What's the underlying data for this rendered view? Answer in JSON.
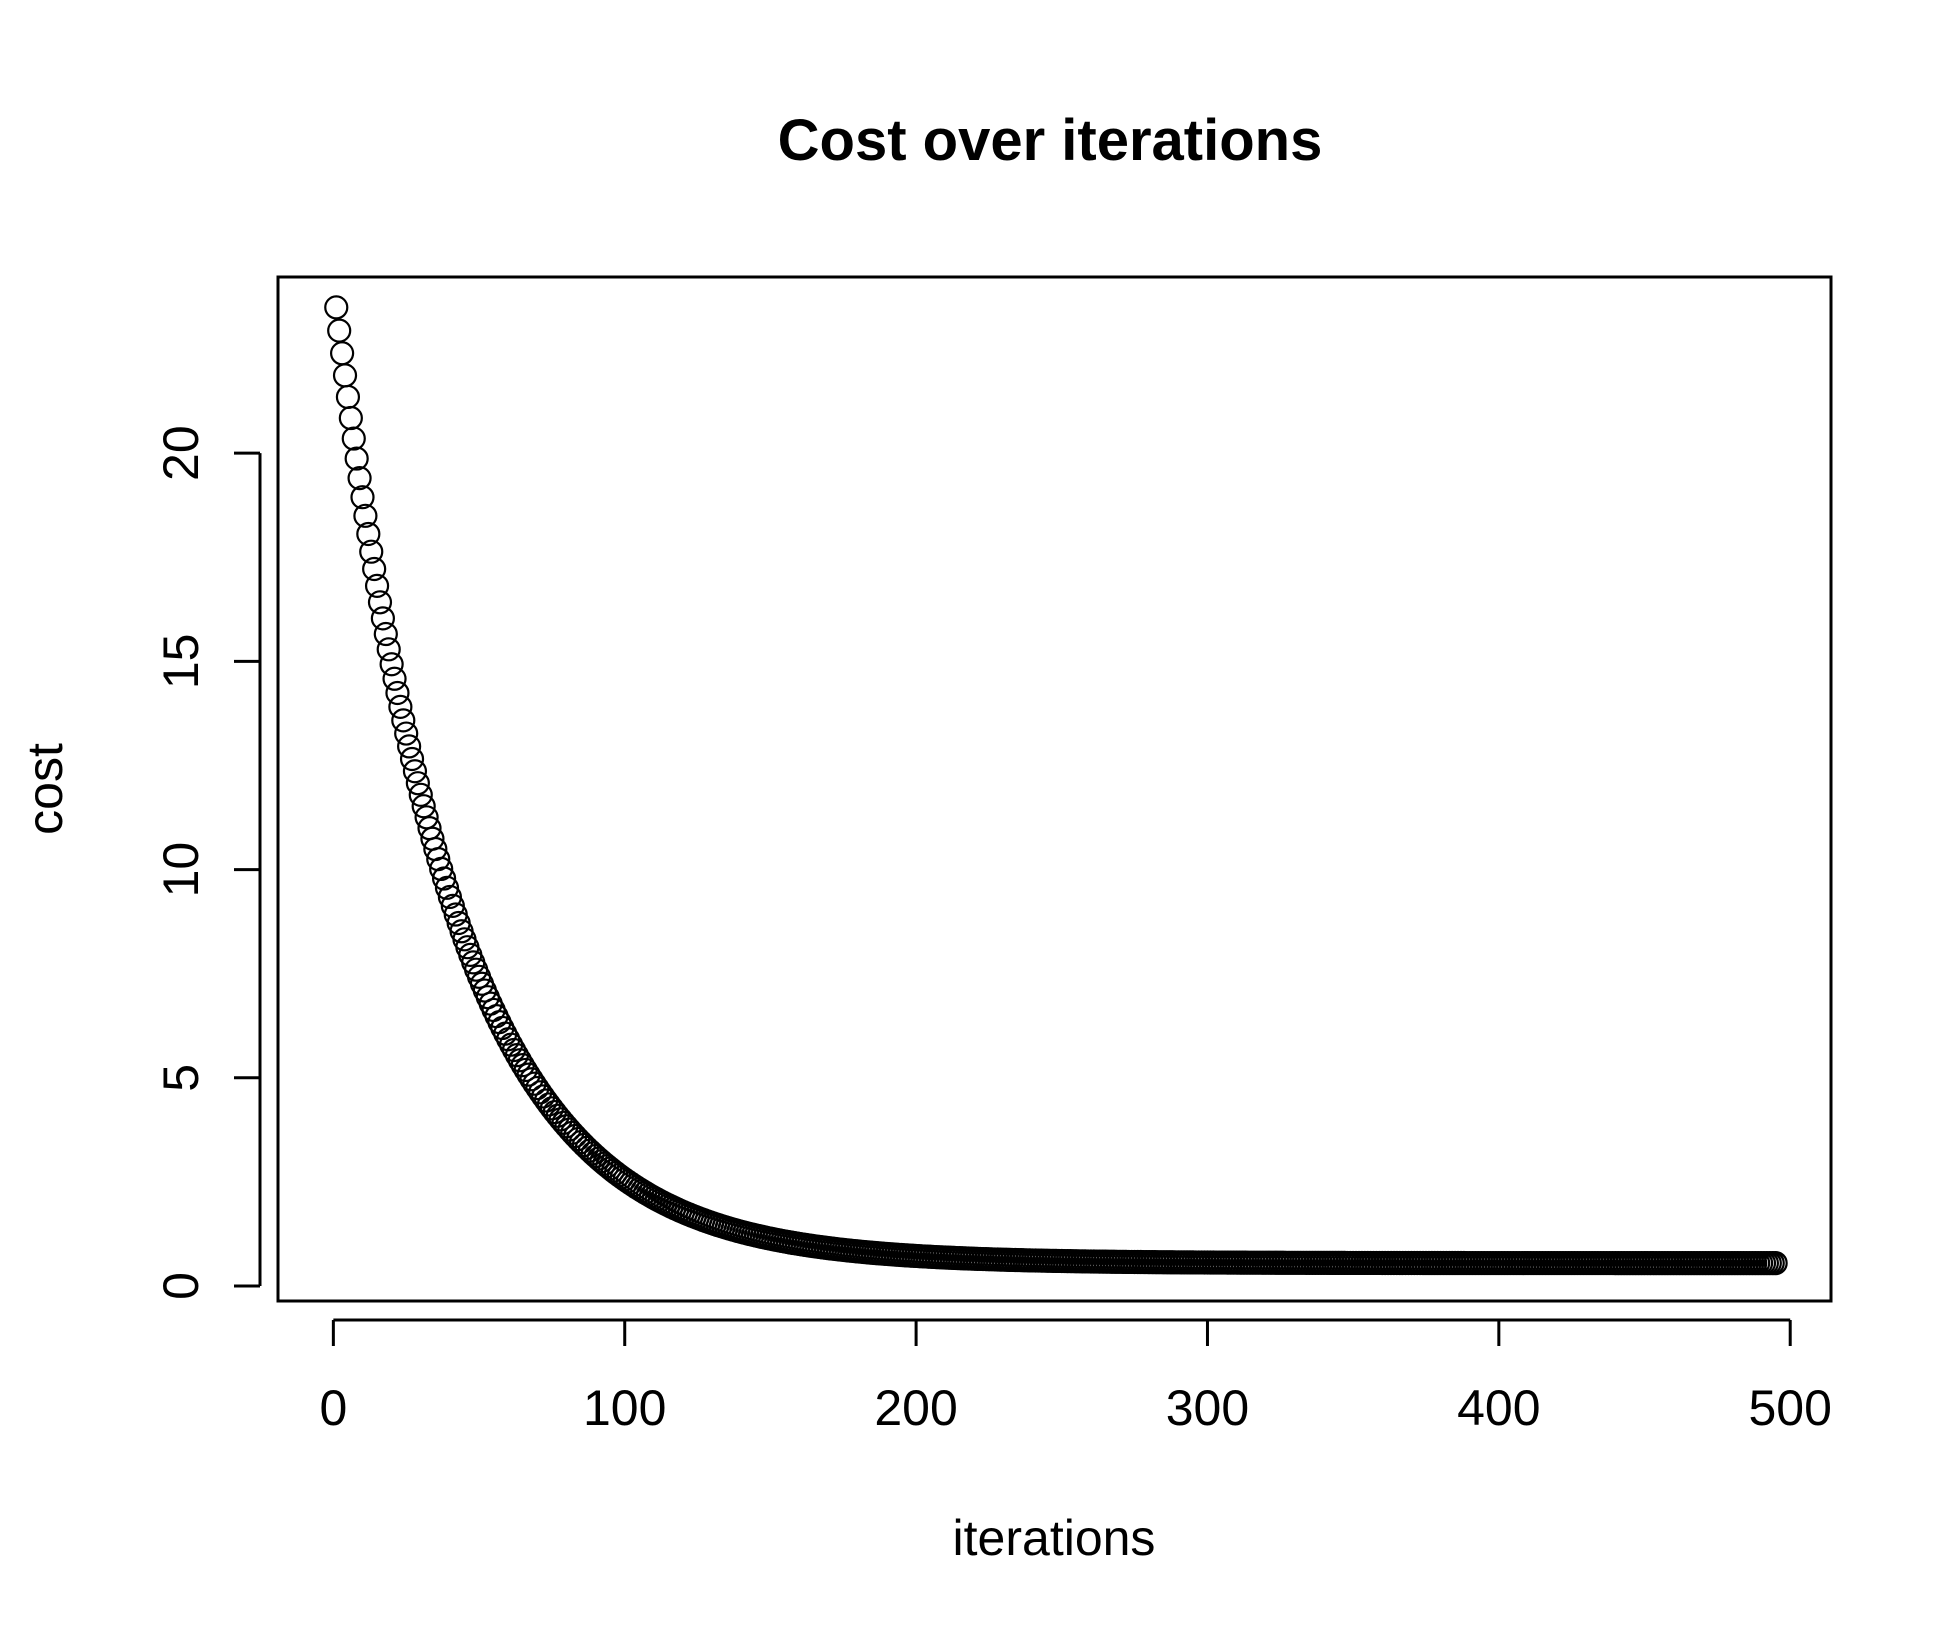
{
  "chart_data": {
    "type": "scatter",
    "title": "Cost over iterations",
    "xlabel": "iterations",
    "ylabel": "cost",
    "xlim": [
      -19,
      514
    ],
    "ylim": [
      -0.36,
      24.23
    ],
    "x_ticks": [
      0,
      100,
      200,
      300,
      400,
      500
    ],
    "y_ticks": [
      0,
      5,
      10,
      15,
      20
    ],
    "marker": "open-circle",
    "grid": false,
    "legend": "none",
    "series": [
      {
        "x_start": 1,
        "x_end": 495,
        "x_step": 1,
        "model": "exponential decay to asymptote",
        "y_first": 23.5,
        "asymptote": 0.55,
        "decay_per_iteration": 0.0246,
        "sample_points": [
          {
            "x": 1,
            "y": 23.5
          },
          {
            "x": 10,
            "y": 19.3
          },
          {
            "x": 25,
            "y": 13.8
          },
          {
            "x": 50,
            "y": 8.0
          },
          {
            "x": 75,
            "y": 4.6
          },
          {
            "x": 100,
            "y": 2.8
          },
          {
            "x": 150,
            "y": 1.3
          },
          {
            "x": 200,
            "y": 0.8
          },
          {
            "x": 300,
            "y": 0.6
          },
          {
            "x": 495,
            "y": 0.55
          }
        ]
      }
    ]
  },
  "colors": {
    "background": "#ffffff",
    "foreground": "#000000"
  }
}
